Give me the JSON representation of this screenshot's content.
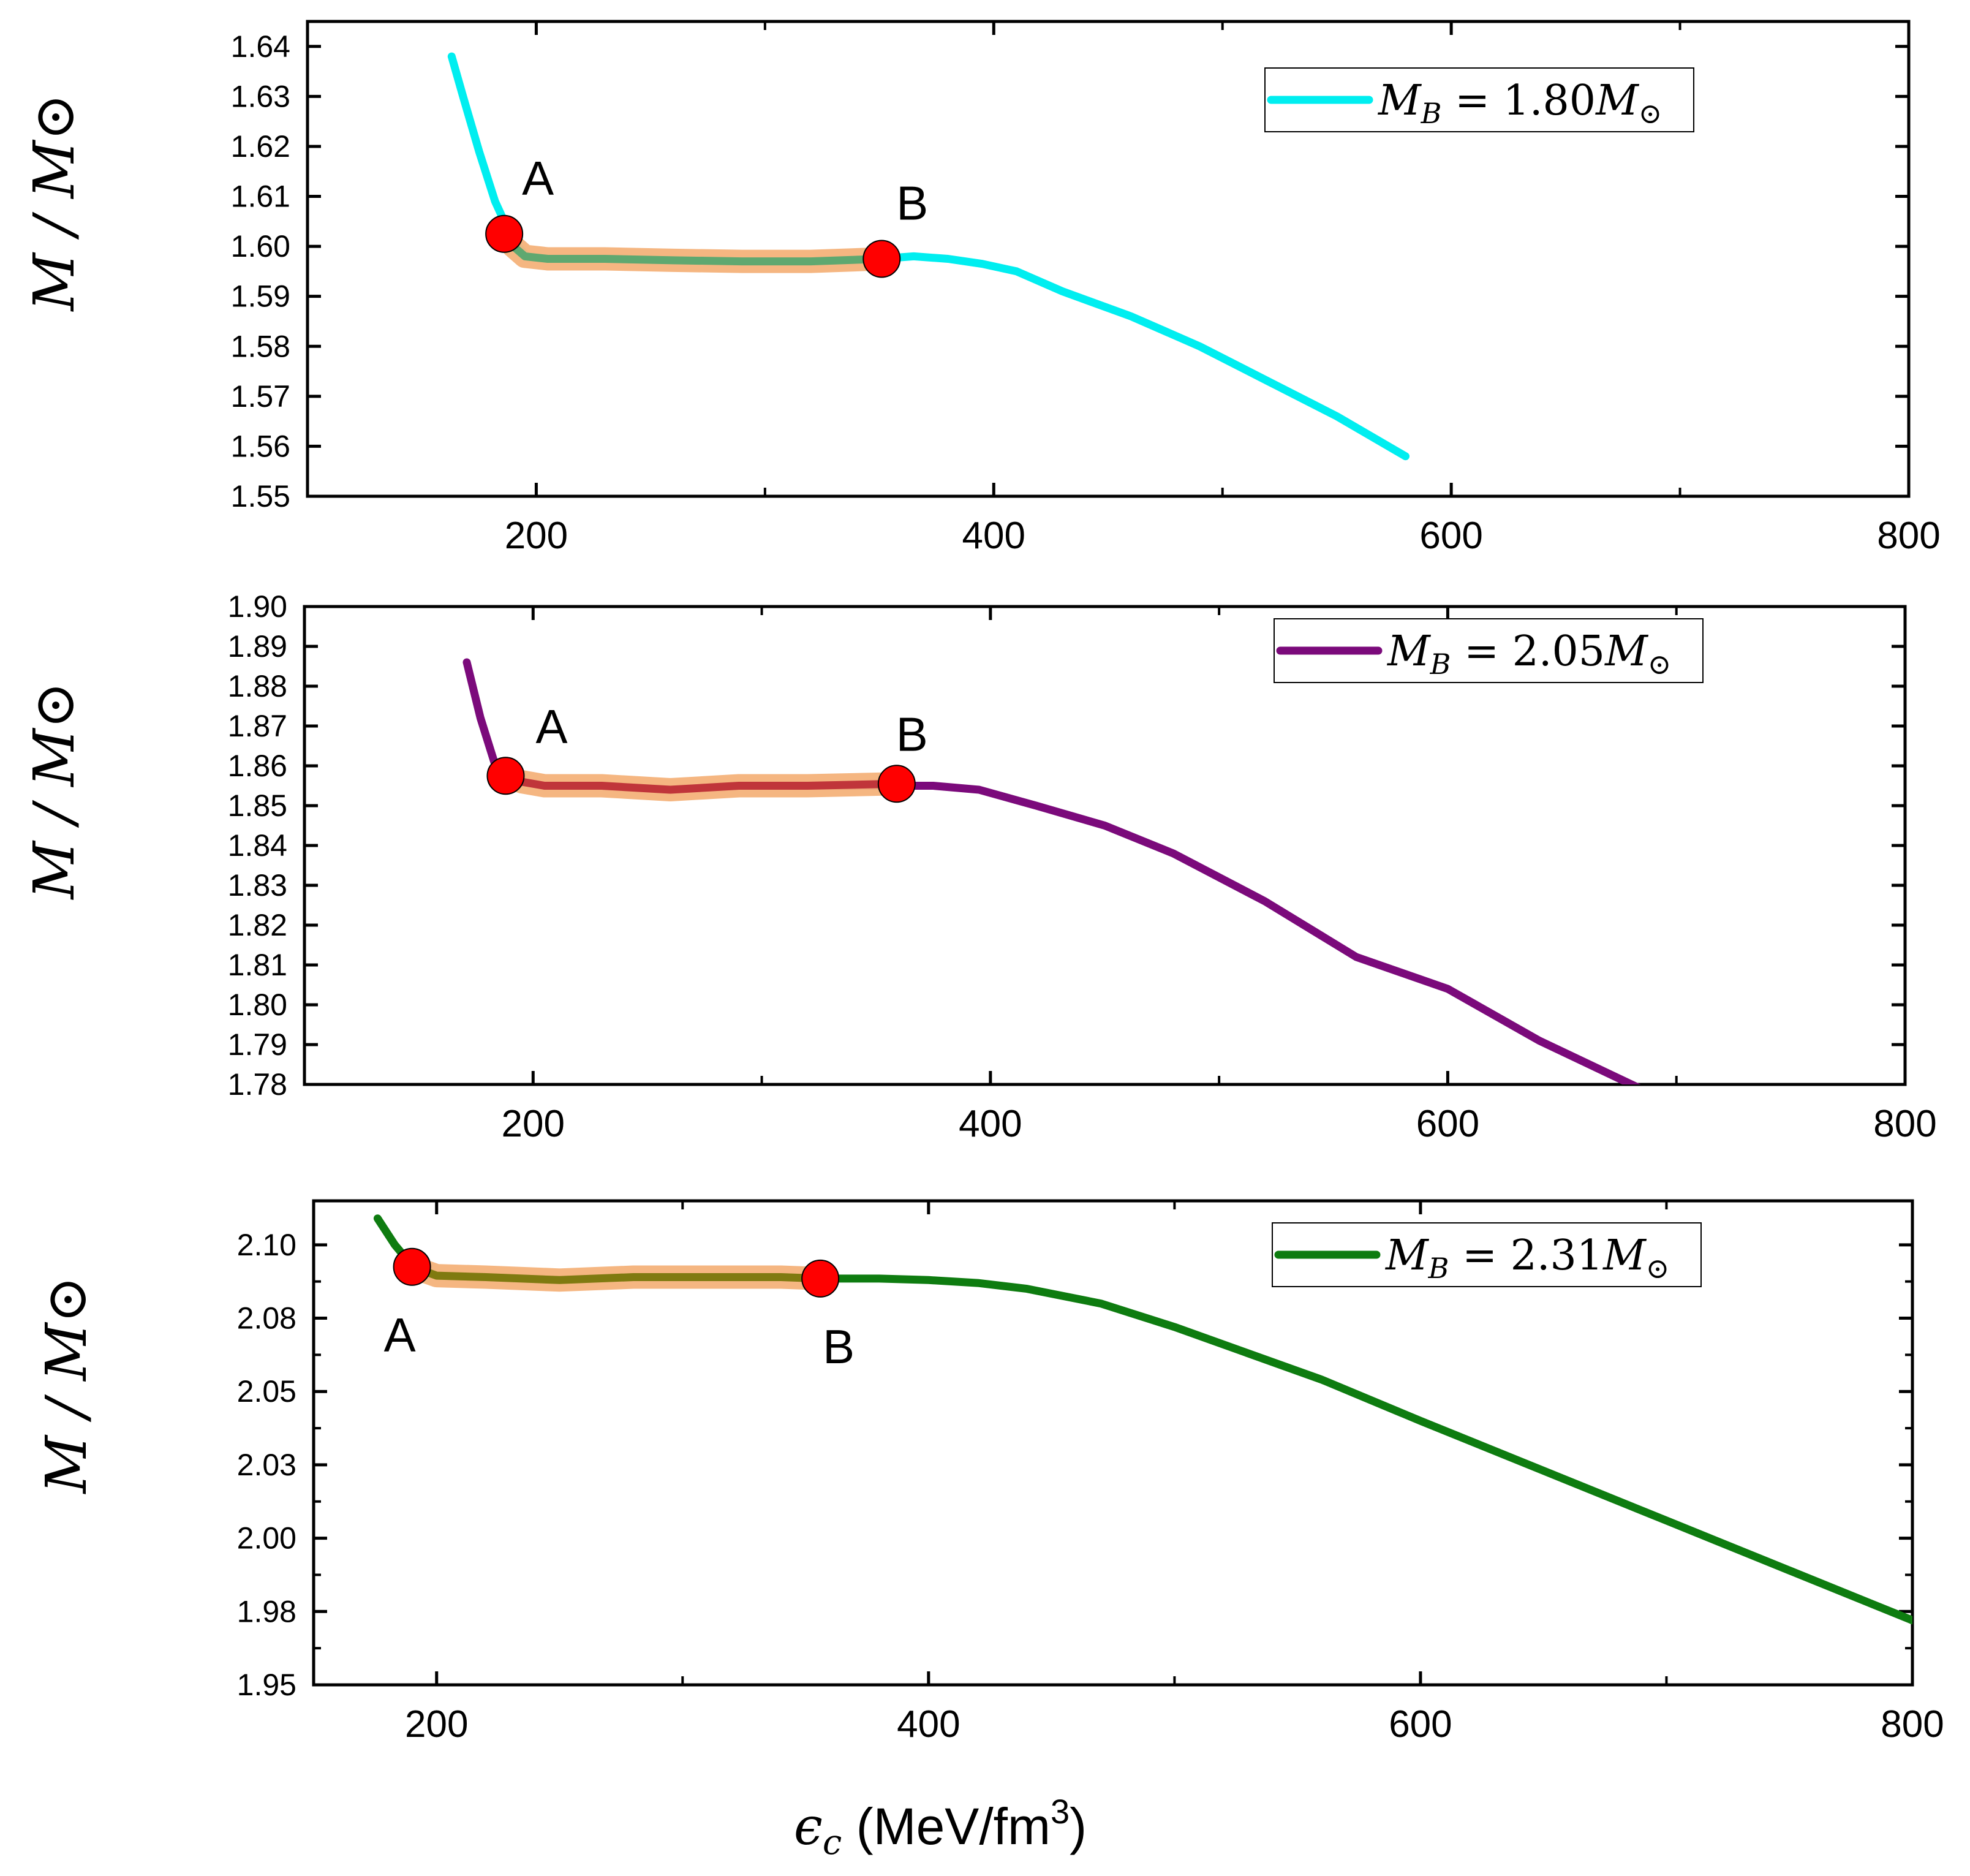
{
  "chart_data": [
    {
      "type": "line",
      "ylabel": "M / M⊙",
      "xlim": [
        100,
        800
      ],
      "ylim": [
        1.55,
        1.645
      ],
      "xticks": [
        200,
        400,
        600,
        800
      ],
      "xtick_labels": [
        "200",
        "400",
        "600",
        "800"
      ],
      "yticks": [
        1.55,
        1.56,
        1.57,
        1.58,
        1.59,
        1.6,
        1.61,
        1.62,
        1.63,
        1.64
      ],
      "ytick_labels": [
        "1.55",
        "1.56",
        "1.57",
        "1.58",
        "1.59",
        "1.60",
        "1.61",
        "1.62",
        "1.63",
        "1.64"
      ],
      "legend": {
        "math": "M",
        "sub": "B",
        "rest": " = 1.80",
        "sun": "M",
        "sym": "⊙",
        "placement": "top-right"
      },
      "series": [
        {
          "name": "M_B = 1.80 M⊙",
          "color": "#00eef0",
          "x": [
            163,
            168,
            175,
            182,
            188,
            192,
            196,
            205,
            230,
            260,
            290,
            320,
            350,
            365,
            380,
            395,
            410,
            430,
            460,
            490,
            520,
            550,
            580
          ],
          "y": [
            1.638,
            1.63,
            1.619,
            1.609,
            1.603,
            1.6,
            1.598,
            1.5975,
            1.5975,
            1.5972,
            1.597,
            1.597,
            1.5975,
            1.598,
            1.5975,
            1.5965,
            1.595,
            1.591,
            1.586,
            1.58,
            1.573,
            1.566,
            1.558
          ]
        }
      ],
      "plateau": {
        "color": "#5fa870",
        "x": [
          186,
          190,
          195,
          205,
          230,
          260,
          290,
          320,
          351
        ],
        "y": [
          1.6025,
          1.6,
          1.598,
          1.5975,
          1.5975,
          1.5972,
          1.597,
          1.597,
          1.5975
        ]
      },
      "points": [
        {
          "label": "A",
          "x": 186,
          "y": 1.6025
        },
        {
          "label": "B",
          "x": 351,
          "y": 1.5975
        }
      ]
    },
    {
      "type": "line",
      "ylabel": "M / M⊙",
      "xlim": [
        100,
        800
      ],
      "ylim": [
        1.78,
        1.9
      ],
      "xticks": [
        200,
        400,
        600,
        800
      ],
      "xtick_labels": [
        "200",
        "400",
        "600",
        "800"
      ],
      "yticks": [
        1.78,
        1.79,
        1.8,
        1.81,
        1.82,
        1.83,
        1.84,
        1.85,
        1.86,
        1.87,
        1.88,
        1.89,
        1.9
      ],
      "ytick_labels": [
        "1.78",
        "1.79",
        "1.80",
        "1.81",
        "1.82",
        "1.83",
        "1.84",
        "1.85",
        "1.86",
        "1.87",
        "1.88",
        "1.89",
        "1.90"
      ],
      "legend": {
        "math": "M",
        "sub": "B",
        "rest": " = 2.05",
        "sun": "M",
        "sym": "⊙",
        "placement": "top-right"
      },
      "series": [
        {
          "name": "M_B = 2.05 M⊙",
          "color": "#7b0a7b",
          "x": [
            171,
            177,
            183,
            188,
            195,
            205,
            230,
            260,
            290,
            320,
            359,
            375,
            395,
            420,
            450,
            480,
            520,
            560,
            600,
            640,
            684
          ],
          "y": [
            1.886,
            1.872,
            1.861,
            1.858,
            1.856,
            1.855,
            1.855,
            1.854,
            1.855,
            1.855,
            1.855,
            1.855,
            1.854,
            1.85,
            1.845,
            1.838,
            1.826,
            1.812,
            1.804,
            1.791,
            1.779
          ]
        }
      ],
      "plateau": {
        "color": "#c0353a",
        "x": [
          188,
          195,
          205,
          230,
          260,
          290,
          320,
          359
        ],
        "y": [
          1.8575,
          1.856,
          1.855,
          1.855,
          1.854,
          1.855,
          1.855,
          1.8555
        ]
      },
      "points": [
        {
          "label": "A",
          "x": 188,
          "y": 1.8575
        },
        {
          "label": "B",
          "x": 359,
          "y": 1.8555
        }
      ]
    },
    {
      "type": "line",
      "ylabel": "M / M⊙",
      "xlabel": "ϵc (MeV/fm3)",
      "xlim": [
        150,
        800
      ],
      "ylim": [
        1.95,
        2.115
      ],
      "xticks": [
        200,
        400,
        600,
        800
      ],
      "xtick_labels": [
        "200",
        "400",
        "600",
        "800"
      ],
      "yticks": [
        1.95,
        1.975,
        2.0,
        2.025,
        2.05,
        2.075,
        2.1
      ],
      "ytick_labels": [
        "1.95",
        "1.98",
        "2.00",
        "2.03",
        "2.05",
        "2.08",
        "2.10"
      ],
      "legend": {
        "math": "M",
        "sub": "B",
        "rest": " = 2.31",
        "sun": "M",
        "sym": "⊙",
        "placement": "top-right"
      },
      "series": [
        {
          "name": "M_B = 2.31 M⊙",
          "color": "#0e7c10",
          "x": [
            176,
            183,
            190,
            200,
            220,
            250,
            280,
            310,
            340,
            356,
            380,
            400,
            420,
            440,
            470,
            500,
            530,
            560,
            600,
            650,
            700,
            750,
            800
          ],
          "y": [
            2.109,
            2.1,
            2.093,
            2.0895,
            2.089,
            2.088,
            2.089,
            2.089,
            2.089,
            2.0885,
            2.0885,
            2.088,
            2.087,
            2.085,
            2.08,
            2.072,
            2.063,
            2.054,
            2.04,
            2.023,
            2.006,
            1.989,
            1.972
          ]
        }
      ],
      "plateau": {
        "color": "#7f7a10",
        "x": [
          190,
          200,
          220,
          250,
          280,
          310,
          340,
          356
        ],
        "y": [
          2.0925,
          2.0895,
          2.089,
          2.088,
          2.089,
          2.089,
          2.089,
          2.0885
        ]
      },
      "points": [
        {
          "label": "A",
          "x": 190,
          "y": 2.0925
        },
        {
          "label": "B",
          "x": 356,
          "y": 2.0885
        }
      ]
    }
  ],
  "xlabel": {
    "symbol": "ϵ",
    "sub": "c",
    "units": " (MeV/fm",
    "sup": "3",
    "close": ")"
  },
  "colors": {
    "glow": "#f4b27a",
    "marker": "#ff0000",
    "frame": "#000000"
  }
}
